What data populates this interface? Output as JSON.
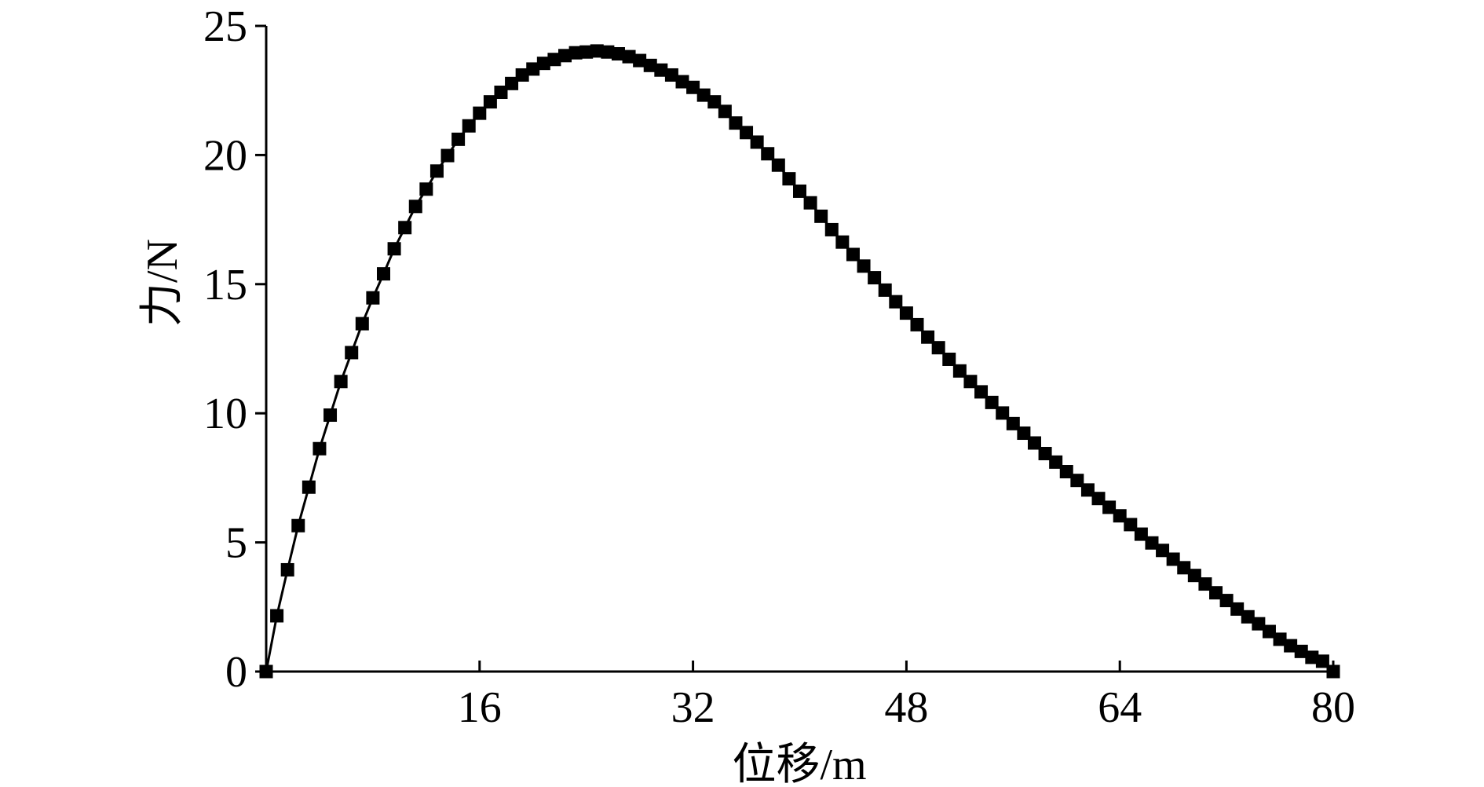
{
  "chart_data": {
    "type": "line",
    "x_label": "位移/m",
    "y_label": "力/N",
    "x": [
      0,
      0.8,
      1.6,
      2.4,
      3.2,
      4.0,
      4.8,
      5.6,
      6.4,
      7.2,
      8.0,
      8.8,
      9.6,
      10.4,
      11.2,
      12.0,
      12.8,
      13.6,
      14.4,
      15.2,
      16.0,
      16.8,
      17.6,
      18.4,
      19.2,
      20.0,
      20.8,
      21.6,
      22.4,
      23.2,
      24.0,
      24.8,
      25.6,
      26.4,
      27.2,
      28.0,
      28.8,
      29.6,
      30.4,
      31.2,
      32.0,
      32.8,
      33.6,
      34.4,
      35.2,
      36.0,
      36.8,
      37.6,
      38.4,
      39.2,
      40.0,
      40.8,
      41.6,
      42.4,
      43.2,
      44.0,
      44.8,
      45.6,
      46.4,
      47.2,
      48.0,
      48.8,
      49.6,
      50.4,
      51.2,
      52.0,
      52.8,
      53.6,
      54.4,
      55.2,
      56.0,
      56.8,
      57.6,
      58.4,
      59.2,
      60.0,
      60.8,
      61.6,
      62.4,
      63.2,
      64.0,
      64.8,
      65.6,
      66.4,
      67.2,
      68.0,
      68.8,
      69.6,
      70.4,
      71.2,
      72.0,
      72.8,
      73.6,
      74.4,
      75.2,
      76.0,
      76.8,
      77.6,
      78.4,
      79.2,
      80.0
    ],
    "series": [
      {
        "color": "#000000",
        "values": [
          0,
          2.16,
          3.94,
          5.65,
          7.14,
          8.63,
          9.93,
          11.23,
          12.35,
          13.47,
          14.47,
          15.4,
          16.37,
          17.19,
          18.01,
          18.68,
          19.38,
          19.98,
          20.61,
          21.13,
          21.62,
          22.06,
          22.43,
          22.77,
          23.1,
          23.33,
          23.55,
          23.7,
          23.85,
          23.96,
          23.99,
          24.03,
          23.99,
          23.92,
          23.81,
          23.66,
          23.47,
          23.29,
          23.1,
          22.84,
          22.62,
          22.32,
          22.06,
          21.69,
          21.24,
          20.87,
          20.5,
          20.05,
          19.61,
          19.08,
          18.6,
          18.15,
          17.63,
          17.11,
          16.63,
          16.15,
          15.7,
          15.25,
          14.77,
          14.32,
          13.88,
          13.43,
          12.95,
          12.54,
          12.09,
          11.64,
          11.23,
          10.83,
          10.42,
          10.01,
          9.6,
          9.23,
          8.85,
          8.44,
          8.11,
          7.74,
          7.4,
          7.03,
          6.7,
          6.36,
          6.03,
          5.69,
          5.32,
          4.98,
          4.69,
          4.35,
          4.02,
          3.72,
          3.39,
          3.05,
          2.75,
          2.42,
          2.12,
          1.85,
          1.55,
          1.25,
          1.0,
          0.78,
          0.55,
          0.4,
          0
        ]
      }
    ],
    "xlim": [
      0,
      80
    ],
    "xticks": [
      16,
      32,
      48,
      64,
      80
    ],
    "ylim": [
      0,
      25
    ],
    "yticks": [
      0,
      5,
      10,
      15,
      20,
      25
    ],
    "marker": "square"
  }
}
